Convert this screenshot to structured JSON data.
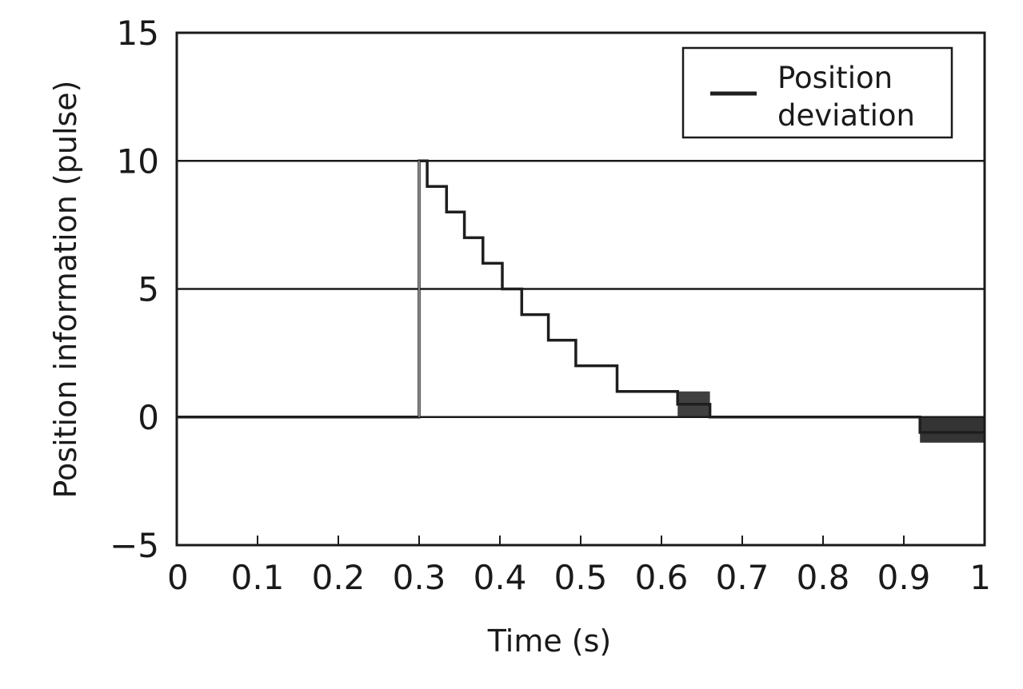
{
  "chart_data": {
    "type": "line",
    "title": "",
    "xlabel": "Time (s)",
    "ylabel": "Position information (pulse)",
    "xlim": [
      0,
      1
    ],
    "ylim": [
      -5,
      15
    ],
    "x_ticks": [
      "0",
      "0.1",
      "0.2",
      "0.3",
      "0.4",
      "0.5",
      "0.6",
      "0.7",
      "0.8",
      "0.9",
      "1"
    ],
    "y_ticks": [
      "15",
      "10",
      "5",
      "0",
      "−5"
    ],
    "grid_y": [
      0,
      5,
      10
    ],
    "legend": {
      "position": "top-right",
      "labels": [
        "Position",
        "deviation"
      ]
    },
    "colors": {
      "series": "#1e1e1e",
      "rise": "#888888",
      "frame": "#1a1a1a"
    },
    "series": [
      {
        "name": "Position deviation",
        "x": [
          0,
          0.3,
          0.3,
          0.31,
          0.31,
          0.334,
          0.334,
          0.356,
          0.356,
          0.379,
          0.379,
          0.403,
          0.403,
          0.427,
          0.427,
          0.46,
          0.46,
          0.494,
          0.494,
          0.545,
          0.545,
          0.62,
          0.62,
          0.66,
          0.66,
          0.92,
          0.92,
          1.0
        ],
        "y": [
          0,
          0,
          10,
          10,
          9,
          9,
          8,
          8,
          7,
          7,
          6,
          6,
          5,
          5,
          4,
          4,
          3,
          3,
          2,
          2,
          1,
          1,
          0.5,
          0.5,
          0,
          0,
          -0.6,
          -0.6
        ]
      }
    ]
  }
}
